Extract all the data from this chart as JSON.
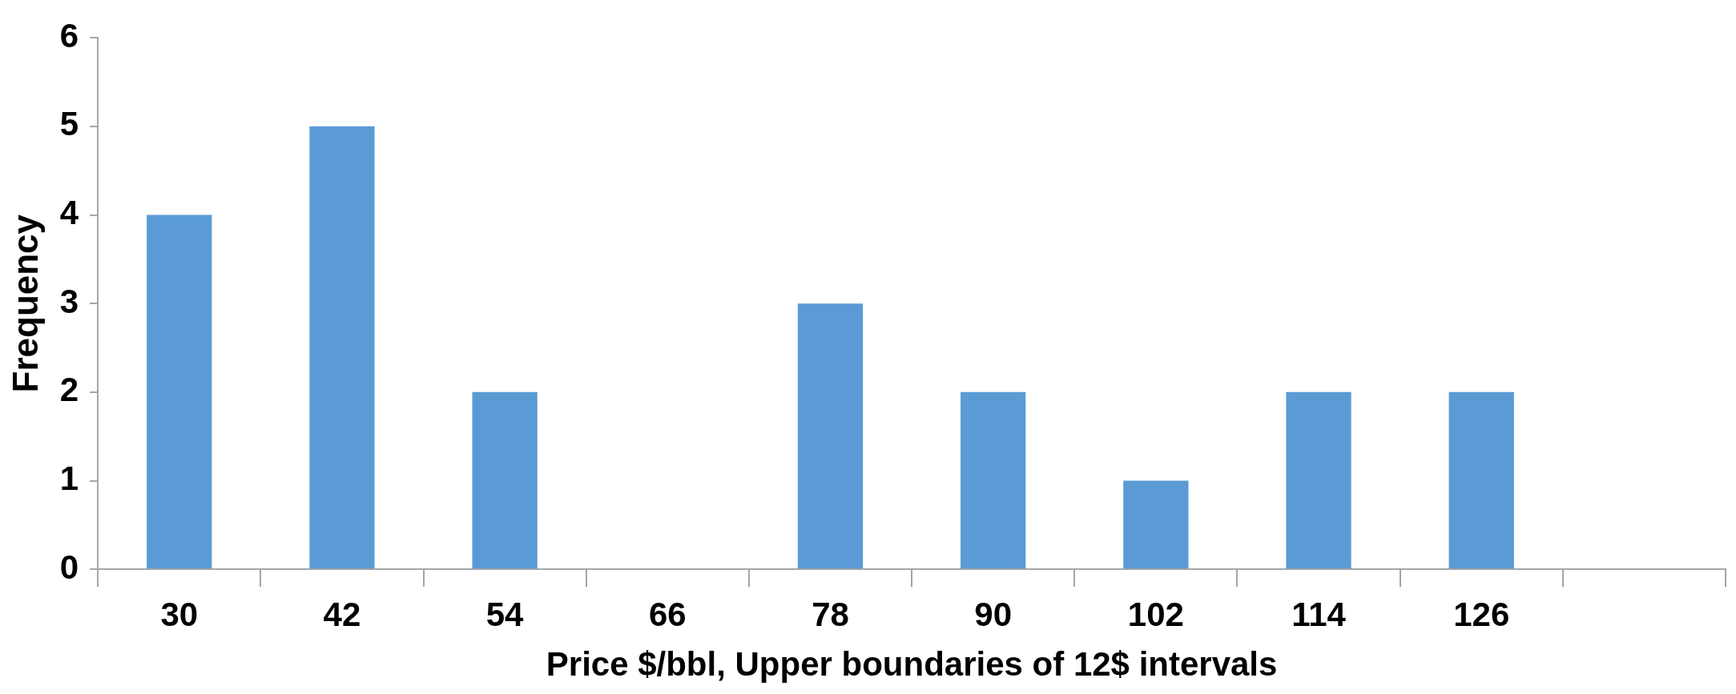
{
  "chart_data": {
    "type": "bar",
    "xlabel": "Price $/bbl, Upper boundaries of 12$ intervals",
    "ylabel": "Frequency",
    "categories": [
      "30",
      "42",
      "54",
      "66",
      "78",
      "90",
      "102",
      "114",
      "126",
      null
    ],
    "values": [
      4,
      5,
      2,
      0,
      3,
      2,
      1,
      2,
      2,
      0
    ],
    "color": "#5b9bd5",
    "ylim": [
      0,
      6
    ],
    "yticks": [
      0,
      1,
      2,
      3,
      4,
      5,
      6
    ],
    "grid": false,
    "legend": false
  }
}
